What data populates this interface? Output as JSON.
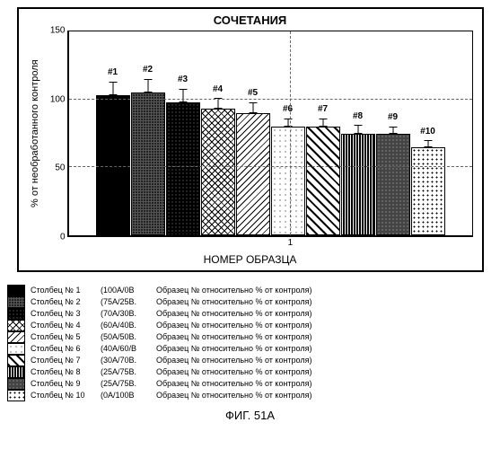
{
  "chart": {
    "type": "bar",
    "title": "СОЧЕТАНИЯ",
    "ylabel": "% от необработанного контроля",
    "xlabel": "НОМЕР ОБРАЗЦА",
    "ylim": [
      0,
      150
    ],
    "yticks": [
      0,
      50,
      100,
      150
    ],
    "xtick_label": "1",
    "background_color": "#ffffff",
    "grid_color": "#666666",
    "bar_border": "#000000",
    "bars": [
      {
        "label": "#1",
        "value": 103,
        "err": 10,
        "pattern": "p-solid-black"
      },
      {
        "label": "#2",
        "value": 105,
        "err": 10,
        "pattern": "p-dark-cross"
      },
      {
        "label": "#3",
        "value": 98,
        "err": 10,
        "pattern": "p-black-dots"
      },
      {
        "label": "#4",
        "value": 93,
        "err": 8,
        "pattern": "p-cross-hatch"
      },
      {
        "label": "#5",
        "value": 90,
        "err": 8,
        "pattern": "p-diag-l"
      },
      {
        "label": "#6",
        "value": 80,
        "err": 6,
        "pattern": "p-sparse-dots"
      },
      {
        "label": "#7",
        "value": 80,
        "err": 6,
        "pattern": "p-diag-r"
      },
      {
        "label": "#8",
        "value": 75,
        "err": 6,
        "pattern": "p-vert"
      },
      {
        "label": "#9",
        "value": 75,
        "err": 5,
        "pattern": "p-gray-dots"
      },
      {
        "label": "#10",
        "value": 65,
        "err": 5,
        "pattern": "p-white-dots"
      }
    ]
  },
  "legend": {
    "items": [
      {
        "pattern": "p-solid-black",
        "col": "Столбец № 1",
        "ratio": "(100А/0В",
        "desc": "Образец № относительно % от контроля)"
      },
      {
        "pattern": "p-dark-cross",
        "col": "Столбец № 2",
        "ratio": "(75А/25В.",
        "desc": "Образец № относительно % от контроля)"
      },
      {
        "pattern": "p-black-dots",
        "col": "Столбец № 3",
        "ratio": "(70А/30В.",
        "desc": "Образец № относительно % от контроля)"
      },
      {
        "pattern": "p-cross-hatch",
        "col": "Столбец № 4",
        "ratio": "(60А/40В.",
        "desc": "Образец № относительно % от контроля)"
      },
      {
        "pattern": "p-diag-l",
        "col": "Столбец № 5",
        "ratio": "(50А/50В.",
        "desc": "Образец № относительно % от контроля)"
      },
      {
        "pattern": "p-sparse-dots",
        "col": "Столбец № 6",
        "ratio": "(40А/60/В",
        "desc": "Образец № относительно % от контроля)"
      },
      {
        "pattern": "p-diag-r",
        "col": "Столбец № 7",
        "ratio": "(30А/70В.",
        "desc": "Образец № относительно % от контроля)"
      },
      {
        "pattern": "p-vert",
        "col": "Столбец № 8",
        "ratio": "(25А/75В.",
        "desc": "Образец № относительно % от контроля)"
      },
      {
        "pattern": "p-gray-dots",
        "col": "Столбец № 9",
        "ratio": "(25А/75В.",
        "desc": "Образец № относительно % от контроля)"
      },
      {
        "pattern": "p-white-dots",
        "col": "Столбец № 10",
        "ratio": "(0А/100В",
        "desc": "Образец № относительно % от контроля)"
      }
    ]
  },
  "figure_label": "ФИГ. 51А"
}
